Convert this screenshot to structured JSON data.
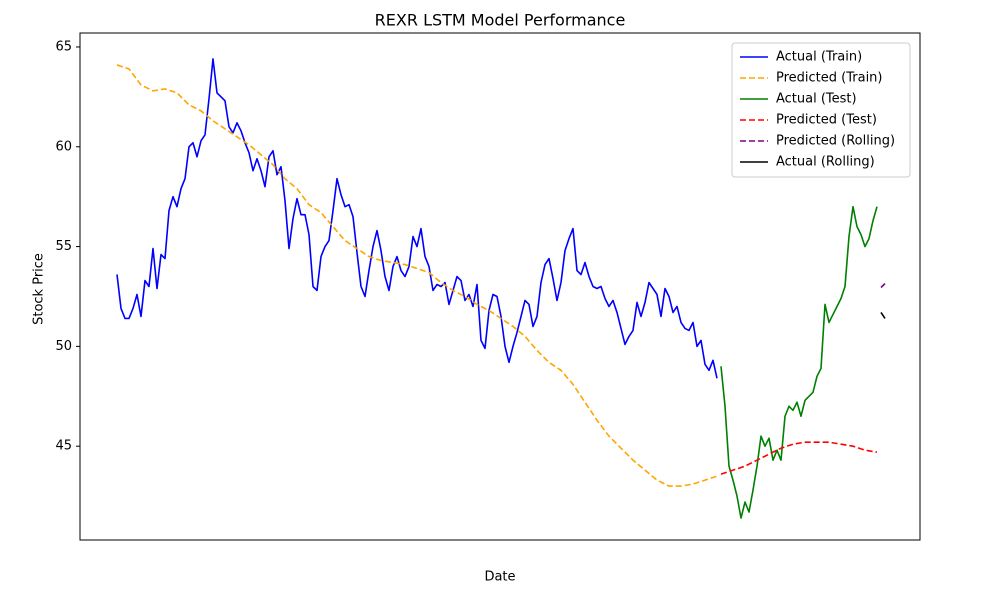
{
  "chart_data": {
    "type": "line",
    "title": "REXR LSTM Model Performance",
    "xlabel": "Date",
    "ylabel": "Stock Price",
    "xlim": [
      -9.25,
      200.75
    ],
    "ylim": [
      40.3,
      65.7
    ],
    "yticks": [
      45,
      50,
      55,
      60,
      65
    ],
    "legend": "upper right",
    "series": [
      {
        "name": "Actual (Train)",
        "color": "#0000ff",
        "linestyle": "solid",
        "x": [
          0,
          1,
          2,
          3,
          4,
          5,
          6,
          7,
          8,
          9,
          10,
          11,
          12,
          13,
          14,
          15,
          16,
          17,
          18,
          19,
          20,
          21,
          22,
          23,
          24,
          25,
          26,
          27,
          28,
          29,
          30,
          31,
          32,
          33,
          34,
          35,
          36,
          37,
          38,
          39,
          40,
          41,
          42,
          43,
          44,
          45,
          46,
          47,
          48,
          49,
          50,
          51,
          52,
          53,
          54,
          55,
          56,
          57,
          58,
          59,
          60,
          61,
          62,
          63,
          64,
          65,
          66,
          67,
          68,
          69,
          70,
          71,
          72,
          73,
          74,
          75,
          76,
          77,
          78,
          79,
          80,
          81,
          82,
          83,
          84,
          85,
          86,
          87,
          88,
          89,
          90,
          91,
          92,
          93,
          94,
          95,
          96,
          97,
          98,
          99,
          100,
          101,
          102,
          103,
          104,
          105,
          106,
          107,
          108,
          109,
          110,
          111,
          112,
          113,
          114,
          115,
          116,
          117,
          118,
          119,
          120,
          121,
          122,
          123,
          124,
          125,
          126,
          127,
          128,
          129,
          130,
          131,
          132,
          133,
          134,
          135,
          136,
          137,
          138,
          139,
          140,
          141,
          142,
          143,
          144,
          145,
          146,
          147,
          148,
          149,
          150
        ],
        "values": [
          53.6,
          51.9,
          51.4,
          51.4,
          51.9,
          52.6,
          51.5,
          53.3,
          53.0,
          54.9,
          52.9,
          54.6,
          54.4,
          56.8,
          57.5,
          57.0,
          57.9,
          58.4,
          60.0,
          60.2,
          59.5,
          60.3,
          60.6,
          62.4,
          64.4,
          62.7,
          62.5,
          62.3,
          61.0,
          60.7,
          61.2,
          60.8,
          60.2,
          59.7,
          58.8,
          59.4,
          58.8,
          58.0,
          59.5,
          59.8,
          58.6,
          59.0,
          57.3,
          54.9,
          56.4,
          57.4,
          56.6,
          56.6,
          55.6,
          53.0,
          52.8,
          54.5,
          55.0,
          55.3,
          56.8,
          58.4,
          57.6,
          57.0,
          57.1,
          56.5,
          54.7,
          53.0,
          52.5,
          53.8,
          55.0,
          55.8,
          54.8,
          53.5,
          52.8,
          54.0,
          54.5,
          53.8,
          53.5,
          54.0,
          55.5,
          55.0,
          55.9,
          54.5,
          54.0,
          52.8,
          53.1,
          53.0,
          53.2,
          52.1,
          52.8,
          53.5,
          53.3,
          52.3,
          52.6,
          52.0,
          53.1,
          50.3,
          49.9,
          51.8,
          52.6,
          52.5,
          51.5,
          50.0,
          49.2,
          50.0,
          50.7,
          51.5,
          52.3,
          52.1,
          51.0,
          51.5,
          53.2,
          54.1,
          54.4,
          53.4,
          52.3,
          53.2,
          54.8,
          55.4,
          55.9,
          53.8,
          53.6,
          54.2,
          53.5,
          53.0,
          52.9,
          53.0,
          52.4,
          52.0,
          52.3,
          51.7,
          50.9,
          50.1,
          50.5,
          50.8,
          52.2,
          51.5,
          52.2,
          53.2,
          52.9,
          52.6,
          51.5,
          52.9,
          52.5,
          51.7,
          52.0,
          51.2,
          50.9,
          50.8,
          51.2,
          50.0,
          50.3,
          49.1,
          48.8,
          49.3,
          48.4
        ]
      },
      {
        "name": "Predicted (Train)",
        "color": "#ffa500",
        "linestyle": "dashed",
        "x": [
          0,
          3,
          6,
          9,
          12,
          15,
          18,
          21,
          24,
          27,
          30,
          33,
          36,
          39,
          42,
          45,
          48,
          51,
          54,
          57,
          60,
          63,
          66,
          69,
          72,
          75,
          78,
          81,
          84,
          87,
          90,
          93,
          96,
          99,
          102,
          105,
          108,
          111,
          114,
          117,
          120,
          123,
          126,
          129,
          132,
          135,
          138,
          141,
          144,
          147,
          150
        ],
        "values": [
          64.1,
          63.9,
          63.1,
          62.8,
          62.9,
          62.7,
          62.1,
          61.8,
          61.3,
          60.9,
          60.5,
          60.1,
          59.6,
          59.1,
          58.4,
          57.9,
          57.1,
          56.7,
          56.0,
          55.3,
          54.9,
          54.5,
          54.3,
          54.2,
          54.1,
          53.9,
          53.7,
          53.2,
          52.8,
          52.5,
          52.1,
          51.8,
          51.4,
          51.0,
          50.5,
          49.8,
          49.2,
          48.8,
          48.1,
          47.2,
          46.3,
          45.5,
          44.9,
          44.3,
          43.8,
          43.3,
          43.0,
          43.0,
          43.1,
          43.3,
          43.5
        ]
      },
      {
        "name": "Actual (Test)",
        "color": "#008000",
        "linestyle": "solid",
        "x": [
          151,
          152,
          153,
          154,
          155,
          156,
          157,
          158,
          159,
          160,
          161,
          162,
          163,
          164,
          165,
          166,
          167,
          168,
          169,
          170,
          171,
          172,
          173,
          174,
          175,
          176,
          177,
          178,
          179,
          180,
          181,
          182,
          183,
          184,
          185,
          186,
          187,
          188,
          189,
          190
        ],
        "values": [
          49.0,
          47.0,
          44.0,
          43.3,
          42.5,
          41.4,
          42.2,
          41.7,
          42.8,
          44.0,
          45.5,
          45.0,
          45.4,
          44.3,
          44.8,
          44.3,
          46.5,
          47.0,
          46.8,
          47.2,
          46.5,
          47.3,
          47.5,
          47.7,
          48.5,
          48.9,
          52.1,
          51.2,
          51.6,
          52.0,
          52.4,
          53.0,
          55.5,
          57.0,
          56.0,
          55.6,
          55.0,
          55.4,
          56.3,
          57.0
        ]
      },
      {
        "name": "Predicted (Test)",
        "color": "#ff0000",
        "linestyle": "dashed",
        "x": [
          151,
          154,
          157,
          160,
          163,
          166,
          169,
          172,
          175,
          178,
          181,
          184,
          187,
          190
        ],
        "values": [
          43.6,
          43.8,
          44.0,
          44.3,
          44.6,
          44.9,
          45.1,
          45.2,
          45.2,
          45.2,
          45.1,
          45.0,
          44.8,
          44.7
        ]
      },
      {
        "name": "Predicted (Rolling)",
        "color": "#800080",
        "linestyle": "dashed",
        "x": [
          191,
          192
        ],
        "values": [
          52.95,
          53.15
        ]
      },
      {
        "name": "Actual (Rolling)",
        "color": "#000000",
        "linestyle": "solid",
        "x": [
          191,
          192
        ],
        "values": [
          51.7,
          51.4
        ]
      }
    ]
  }
}
